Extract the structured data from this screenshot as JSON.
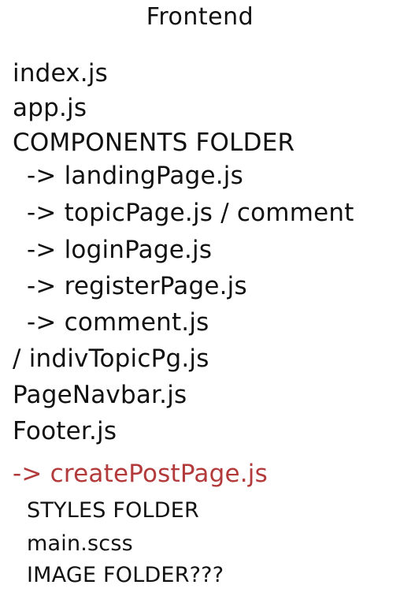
{
  "title": "Frontend",
  "lines": [
    "index.js",
    "app.js",
    "COMPONENTS FOLDER",
    "-> landingPage.js",
    "-> topicPage.js / comment",
    "-> loginPage.js",
    "-> registerPage.js",
    "-> comment.js",
    "/ indivTopicPg.js",
    "PageNavbar.js",
    "Footer.js",
    "-> createPostPage.js",
    "STYLES FOLDER",
    "main.scss",
    "IMAGE FOLDER???"
  ],
  "colors": {
    "text": "#111111",
    "highlight": "#b33a3a",
    "background": "#ffffff"
  }
}
